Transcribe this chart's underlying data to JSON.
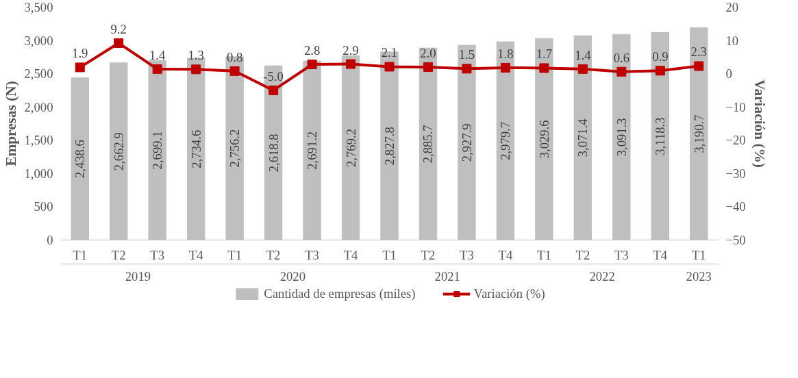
{
  "chart_data": {
    "type": "bar",
    "categories": [
      "T1",
      "T2",
      "T3",
      "T4",
      "T1",
      "T2",
      "T3",
      "T4",
      "T1",
      "T2",
      "T3",
      "T4",
      "T1",
      "T2",
      "T3",
      "T4",
      "T1"
    ],
    "annotations": [
      "2019",
      "2020",
      "2021",
      "2022",
      "2023"
    ],
    "ylabel": "Empresas (N)",
    "y2label": "Variación (%)",
    "ylim": [
      0,
      3500
    ],
    "yticks": [
      0,
      {
        "value": 500,
        "label": "500"
      },
      {
        "value": 1000,
        "label": "1,000"
      },
      {
        "value": 1500,
        "label": "1,500"
      },
      {
        "value": 2000,
        "label": "2,000"
      },
      {
        "value": 2500,
        "label": "2,500"
      },
      {
        "value": 3000,
        "label": "3,000"
      },
      {
        "value": 3500,
        "label": "3,500"
      }
    ],
    "y2lim": [
      -50,
      20
    ],
    "y2ticks": [
      -50,
      -40,
      -30,
      -20,
      -10,
      0,
      10,
      20
    ],
    "series": [
      {
        "name": "Cantidad de empresas (miles)",
        "color": "#bfbfbf",
        "values": [
          2438.6,
          2662.9,
          2699.1,
          2734.6,
          2756.2,
          2618.8,
          2691.2,
          2769.2,
          2827.8,
          2885.7,
          2927.9,
          2979.7,
          3029.6,
          3071.4,
          3091.3,
          3118.3,
          3190.7
        ],
        "value_labels": [
          "2,438.6",
          "2,662.9",
          "2,699.1",
          "2,734.6",
          "2,756.2",
          "2,618.8",
          "2,691.2",
          "2,769.2",
          "2,827.8",
          "2,885.7",
          "2,927.9",
          "2,979.7",
          "3,029.6",
          "3,071.4",
          "3,091.3",
          "3,118.3",
          "3,190.7"
        ]
      },
      {
        "name": "Variación (%)",
        "type": "line",
        "axis": "y2",
        "color": "#c00000",
        "marker": "square",
        "values": [
          1.9,
          9.2,
          1.4,
          1.3,
          0.8,
          -5.0,
          2.8,
          2.9,
          2.1,
          2.0,
          1.5,
          1.8,
          1.7,
          1.4,
          0.6,
          0.9,
          2.3
        ],
        "value_labels": [
          "1.9",
          "9.2",
          "1.4",
          "1.3",
          "0.8",
          "-5.0",
          "2.8",
          "2.9",
          "2.1",
          "2.0",
          "1.5",
          "1.8",
          "1.7",
          "1.4",
          "0.6",
          "0.9",
          "2.3"
        ]
      }
    ],
    "grid": false,
    "legend": "bottom"
  }
}
